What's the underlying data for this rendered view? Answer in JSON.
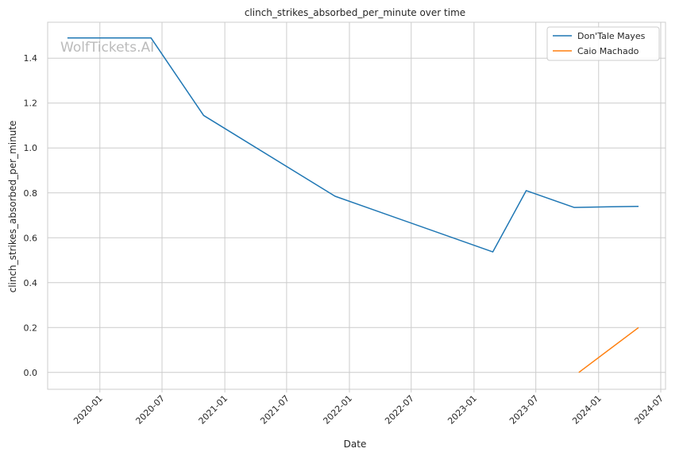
{
  "chart_data": {
    "type": "line",
    "title": "clinch_strikes_absorbed_per_minute over time",
    "xlabel": "Date",
    "ylabel": "clinch_strikes_absorbed_per_minute",
    "xlim": [
      "2019-08-01",
      "2024-07-15"
    ],
    "ylim": [
      -0.075,
      1.56
    ],
    "grid": true,
    "legend_position": "top-right",
    "watermark": "WolfTickets.AI",
    "x_ticks": [
      "2020-01",
      "2020-07",
      "2021-01",
      "2021-07",
      "2022-01",
      "2022-07",
      "2023-01",
      "2023-07",
      "2024-01",
      "2024-07"
    ],
    "y_ticks": [
      "0.0",
      "0.2",
      "0.4",
      "0.6",
      "0.8",
      "1.0",
      "1.2",
      "1.4"
    ],
    "series": [
      {
        "name": "Don'Tale Mayes",
        "color": "#1f77b4",
        "points": [
          {
            "x": "2019-09-28",
            "y": 1.49
          },
          {
            "x": "2020-05-30",
            "y": 1.49
          },
          {
            "x": "2020-10-31",
            "y": 1.145
          },
          {
            "x": "2021-11-20",
            "y": 0.785
          },
          {
            "x": "2023-02-25",
            "y": 0.537
          },
          {
            "x": "2023-06-03",
            "y": 0.81
          },
          {
            "x": "2023-10-21",
            "y": 0.735
          },
          {
            "x": "2024-04-27",
            "y": 0.74
          }
        ]
      },
      {
        "name": "Caio Machado",
        "color": "#ff7f0e",
        "points": [
          {
            "x": "2023-11-04",
            "y": 0.0
          },
          {
            "x": "2024-04-27",
            "y": 0.2
          }
        ]
      }
    ]
  }
}
